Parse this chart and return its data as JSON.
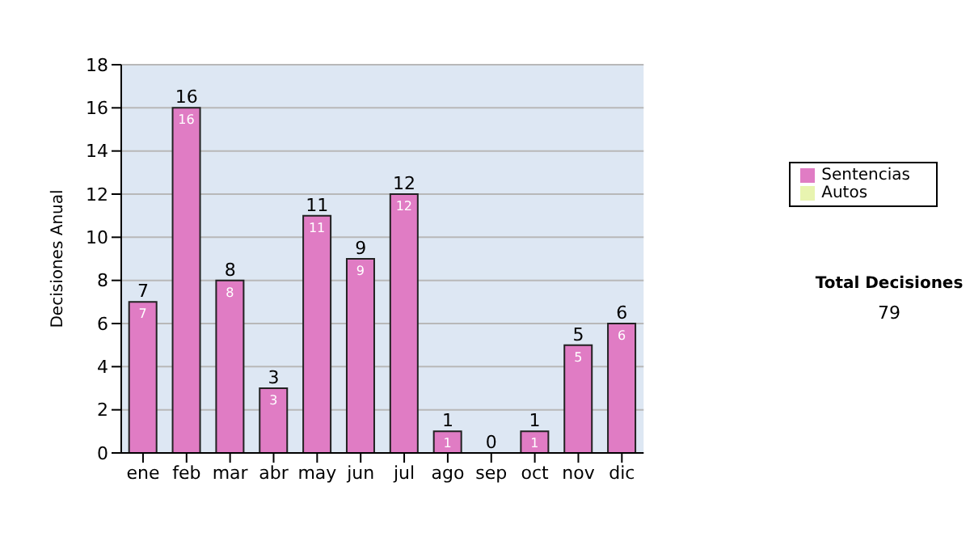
{
  "chart_data": {
    "type": "bar",
    "ylabel": "Decisiones Anual",
    "categories": [
      "ene",
      "feb",
      "mar",
      "abr",
      "may",
      "jun",
      "jul",
      "ago",
      "sep",
      "oct",
      "nov",
      "dic"
    ],
    "series": [
      {
        "name": "Sentencias",
        "color": "#e07cc4",
        "values": [
          7,
          16,
          8,
          3,
          11,
          9,
          12,
          1,
          0,
          1,
          5,
          6
        ],
        "value_labels": [
          "7",
          "16",
          "8",
          "3",
          "11",
          "9",
          "12",
          "1",
          null,
          "1",
          "5",
          "6"
        ]
      },
      {
        "name": "Autos",
        "color": "#e8f4b0",
        "values": [
          0,
          0,
          0,
          0,
          0,
          0,
          0,
          0,
          0,
          0,
          0,
          0
        ]
      }
    ],
    "stacked": true,
    "totals": [
      "7",
      "16",
      "8",
      "3",
      "11",
      "9",
      "12",
      "1",
      "0",
      "1",
      "5",
      "6"
    ],
    "ylim": [
      0,
      18
    ],
    "yticks": [
      0,
      2,
      4,
      6,
      8,
      10,
      12,
      14,
      16,
      18
    ],
    "grid": "y",
    "legend": "right",
    "annotations": [
      "Total Decisiones",
      "79"
    ]
  }
}
